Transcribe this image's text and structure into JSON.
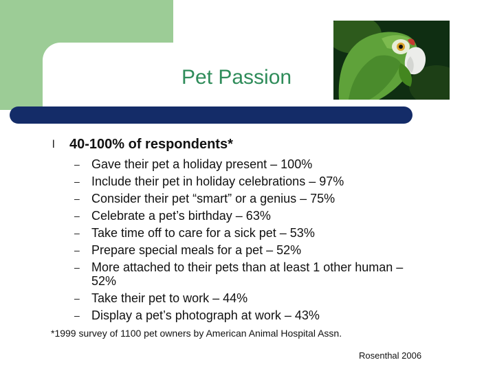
{
  "slide": {
    "title": "Pet Passion",
    "image": "parrot-photo",
    "main_bullet": "40-100% of respondents*",
    "sub_bullets": [
      "Gave their pet a holiday present – 100%",
      "Include their pet in holiday celebrations – 97%",
      "Consider their pet “smart” or a genius – 75%",
      "Celebrate a pet’s birthday – 63%",
      "Take time off to care for a sick pet – 53%",
      "Prepare special meals for a pet – 52%",
      "More attached to their pets than at least 1 other human – 52%",
      "Take their pet to work – 44%",
      "Display a pet’s photograph at work – 43%"
    ],
    "bullet_glyph": "l",
    "dash_glyph": "–",
    "footnote": "*1999 survey of 1100 pet owners by American Animal Hospital Assn.",
    "credit": "Rosenthal 2006"
  },
  "colors": {
    "accent_green": "#9ccc96",
    "title_green": "#2f8c5a",
    "navy_bar": "#142c68"
  }
}
